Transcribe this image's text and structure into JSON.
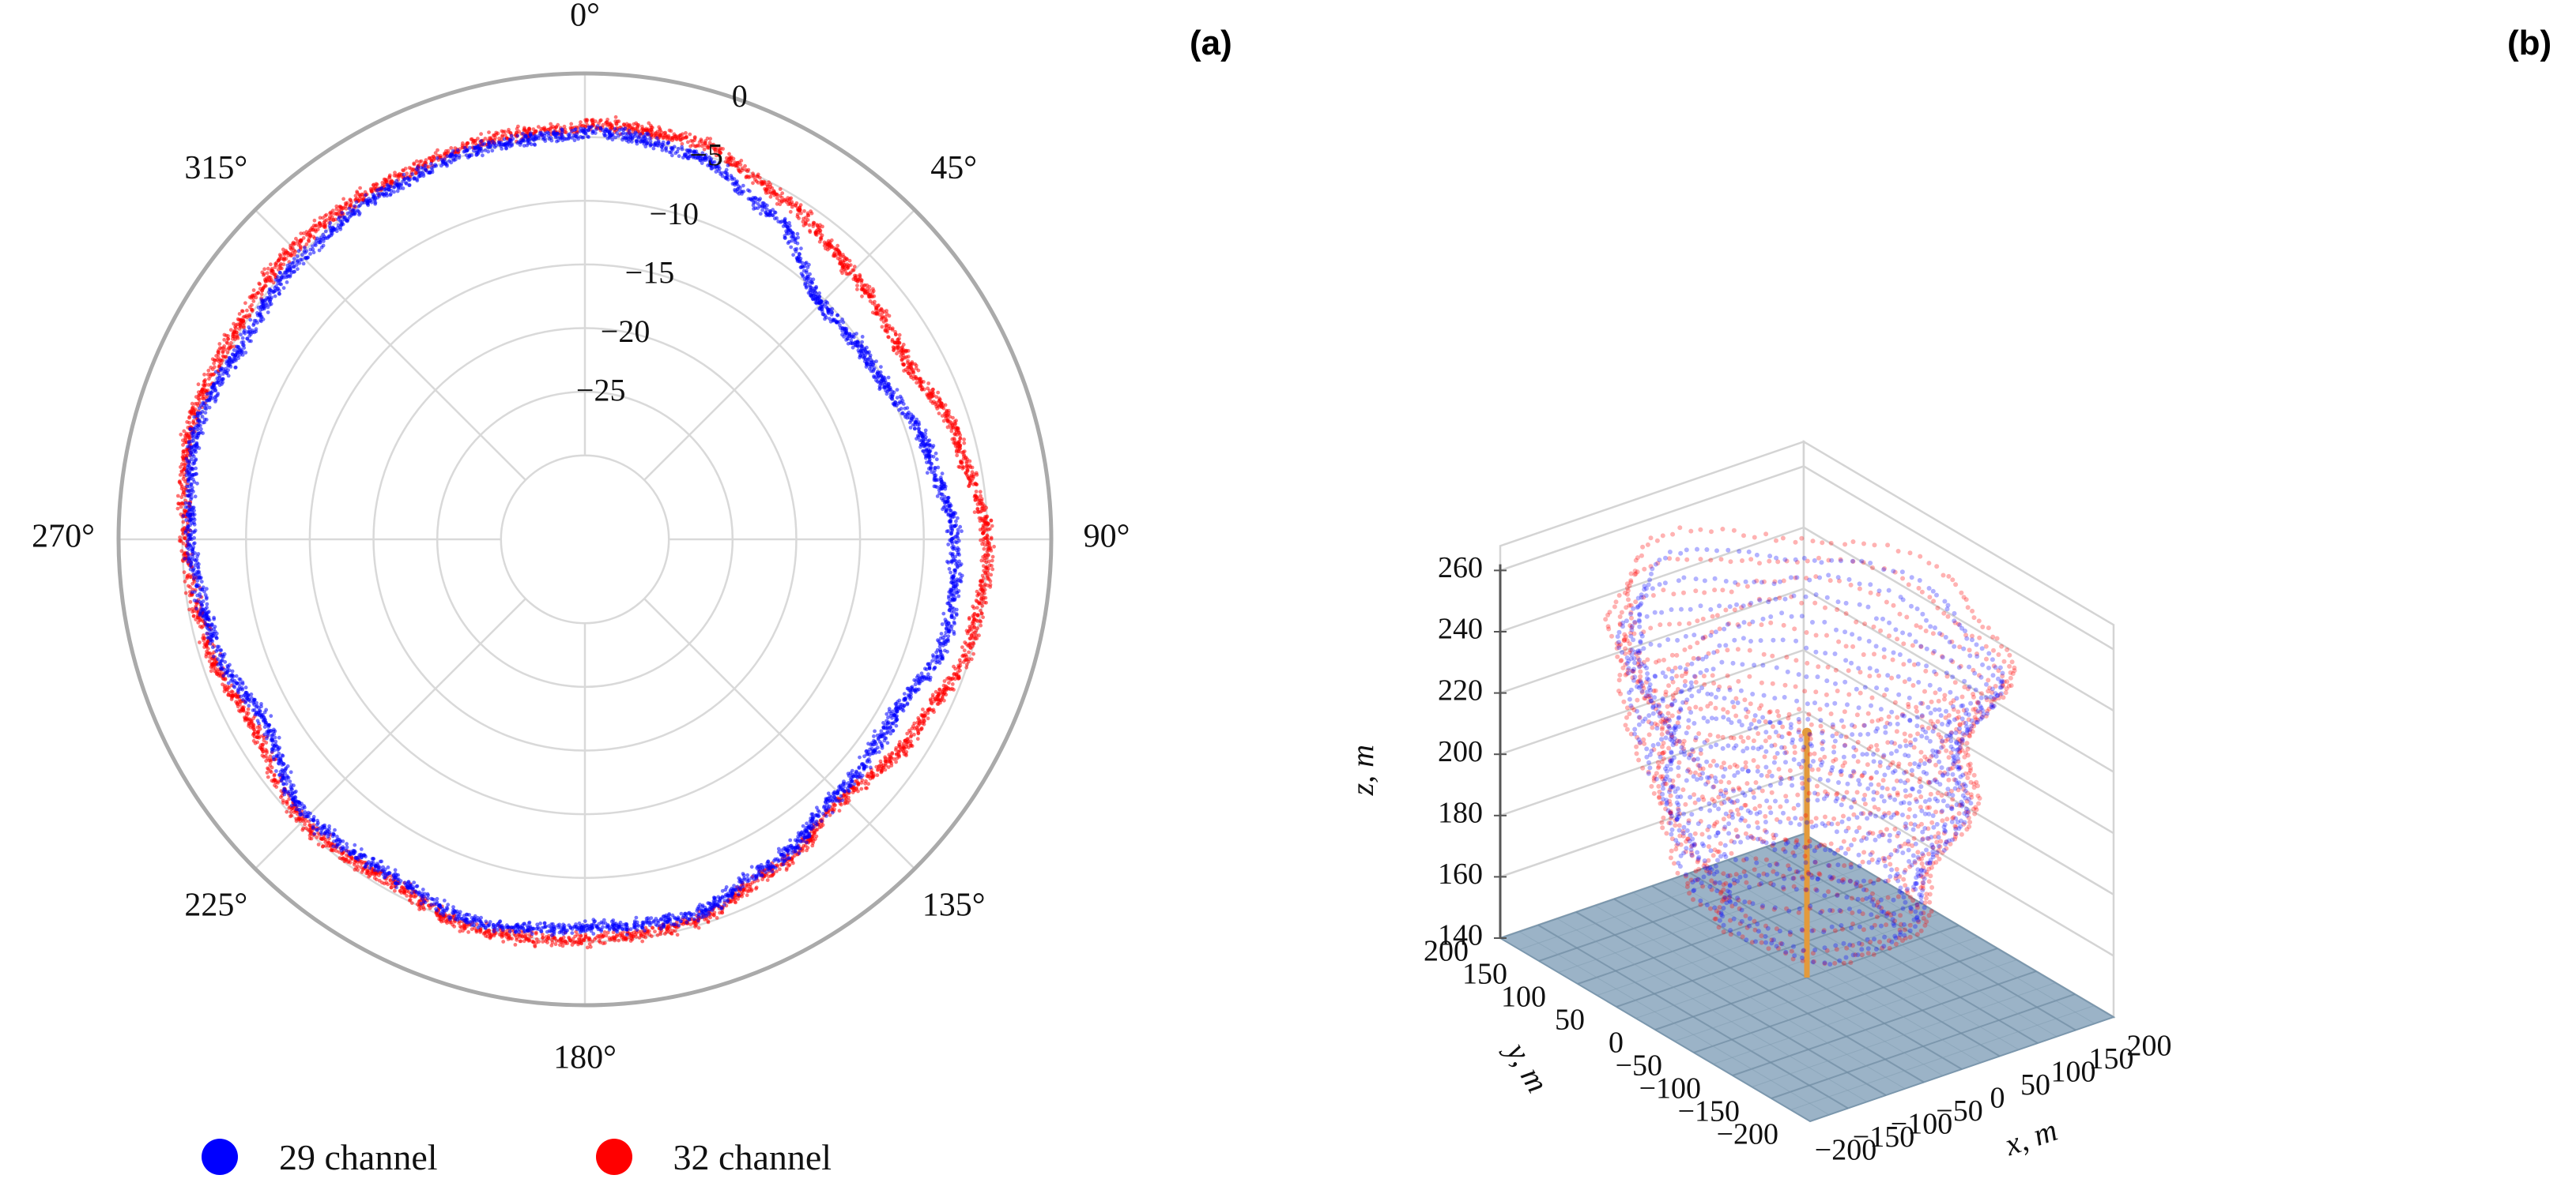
{
  "panel_labels": {
    "a": "(a)",
    "b": "(b)"
  },
  "legend": [
    {
      "label": "29 channel",
      "color": "#0000ff"
    },
    {
      "label": "32 channel",
      "color": "#ff0000"
    }
  ],
  "chart_data": [
    {
      "type": "scatter",
      "subtype": "polar",
      "angular_ticks": [
        "0°",
        "45°",
        "90°",
        "135°",
        "180°",
        "225°",
        "270°",
        "315°"
      ],
      "angular_direction": "clockwise",
      "angular_zero": "top",
      "radial_ticks": [
        "0",
        "−5",
        "−10",
        "−15",
        "−20",
        "−25"
      ],
      "radial_range": [
        -30,
        0
      ],
      "grid": true,
      "series": [
        {
          "name": "29 channel",
          "color": "#0000ff",
          "angles_deg": [
            0,
            15,
            30,
            45,
            60,
            75,
            90,
            105,
            120,
            135,
            150,
            165,
            180,
            195,
            210,
            225,
            240,
            255,
            270,
            285,
            300,
            315,
            330,
            345
          ],
          "r": [
            -4.5,
            -5.5,
            -7.5,
            -10.5,
            -10,
            -8.5,
            -7.5,
            -7.5,
            -9,
            -8.5,
            -7,
            -5.5,
            -6,
            -5.5,
            -6.5,
            -6,
            -7.5,
            -6,
            -5.5,
            -5,
            -6,
            -5.5,
            -5,
            -4.5
          ]
        },
        {
          "name": "32 channel",
          "color": "#ff0000",
          "angles_deg": [
            0,
            15,
            30,
            45,
            60,
            75,
            90,
            105,
            120,
            135,
            150,
            165,
            180,
            195,
            210,
            225,
            240,
            255,
            270,
            285,
            300,
            315,
            330,
            345
          ],
          "r": [
            -4,
            -4.5,
            -6,
            -7,
            -7.5,
            -6,
            -5,
            -5.5,
            -7,
            -8,
            -6.5,
            -5,
            -5,
            -5,
            -6,
            -5.5,
            -6.5,
            -5.5,
            -5,
            -4.5,
            -5,
            -4.5,
            -4.5,
            -4
          ]
        }
      ]
    },
    {
      "type": "scatter",
      "subtype": "3d",
      "xlabel": "x, m",
      "ylabel": "y, m",
      "zlabel": "z, m",
      "xlim": [
        -200,
        200
      ],
      "ylim": [
        -200,
        200
      ],
      "zlim": [
        140,
        260
      ],
      "x_ticks": [
        "−200",
        "−150",
        "−100",
        "−50",
        "0",
        "50",
        "100",
        "150",
        "200"
      ],
      "y_ticks": [
        "−200",
        "−150",
        "−100",
        "−50",
        "0",
        "50",
        "100",
        "150",
        "200"
      ],
      "z_ticks": [
        "140",
        "160",
        "180",
        "200",
        "220",
        "240",
        "260"
      ],
      "ground_plane": {
        "z": 140,
        "color": "#8aa6bd"
      },
      "mast": {
        "x": 0,
        "y": 0,
        "z_min": 140,
        "z_max": 220,
        "color": "#e39a3c"
      },
      "series": [
        {
          "name": "29 channel",
          "color": "#0000ff",
          "shape": "dome",
          "z_range": [
            160,
            250
          ],
          "radius_range": [
            80,
            170
          ]
        },
        {
          "name": "32 channel",
          "color": "#ff0000",
          "shape": "dome",
          "z_range": [
            160,
            255
          ],
          "radius_range": [
            85,
            180
          ]
        }
      ]
    }
  ]
}
